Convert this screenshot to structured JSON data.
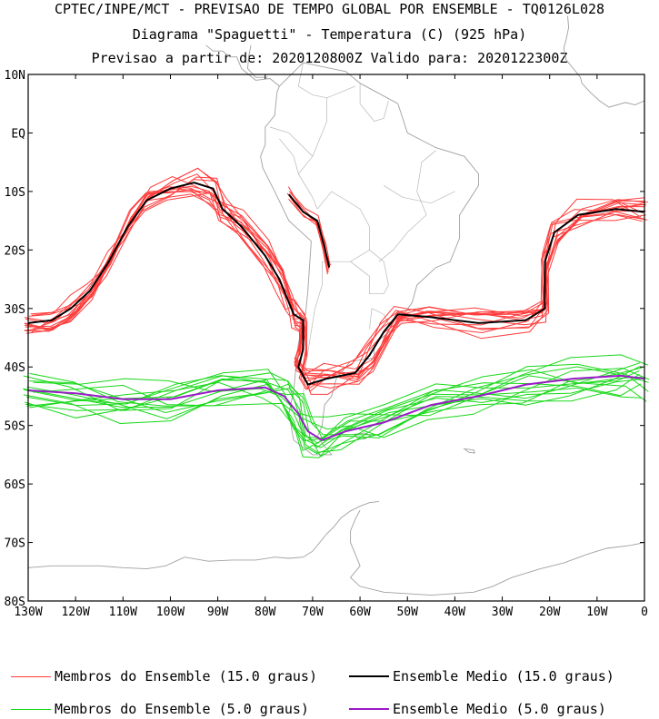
{
  "header": {
    "line1": "CPTEC/INPE/MCT - PREVISAO DE TEMPO GLOBAL POR ENSEMBLE - TQ0126L028",
    "line2": "Diagrama \"Spaguetti\" - Temperatura (C) (925 hPa)",
    "line3": "Previsao a partir de: 2020120800Z  Valido para: 2020122300Z"
  },
  "map": {
    "lon_range": [
      -130,
      0
    ],
    "lat_range": [
      -80,
      10
    ],
    "lat_ticks": [
      {
        "value": 10,
        "label": "10N"
      },
      {
        "value": 0,
        "label": "EQ"
      },
      {
        "value": -10,
        "label": "10S"
      },
      {
        "value": -20,
        "label": "20S"
      },
      {
        "value": -30,
        "label": "30S"
      },
      {
        "value": -40,
        "label": "40S"
      },
      {
        "value": -50,
        "label": "50S"
      },
      {
        "value": -60,
        "label": "60S"
      },
      {
        "value": -70,
        "label": "70S"
      },
      {
        "value": -80,
        "label": "80S"
      }
    ],
    "lon_ticks": [
      {
        "value": -130,
        "label": "130W"
      },
      {
        "value": -120,
        "label": "120W"
      },
      {
        "value": -110,
        "label": "110W"
      },
      {
        "value": -100,
        "label": "100W"
      },
      {
        "value": -90,
        "label": "90W"
      },
      {
        "value": -80,
        "label": "80W"
      },
      {
        "value": -70,
        "label": "70W"
      },
      {
        "value": -60,
        "label": "60W"
      },
      {
        "value": -50,
        "label": "50W"
      },
      {
        "value": -40,
        "label": "40W"
      },
      {
        "value": -30,
        "label": "30W"
      },
      {
        "value": -20,
        "label": "20W"
      },
      {
        "value": -10,
        "label": "10W"
      },
      {
        "value": 0,
        "label": "0"
      }
    ],
    "colors": {
      "members_15": "#ff3b3b",
      "mean_15": "#000000",
      "members_5": "#1ad81a",
      "mean_5": "#9a1ac8",
      "coast": "#a0a0a0"
    },
    "mean_15": [
      [
        -130,
        -32.5
      ],
      [
        -125,
        -32
      ],
      [
        -121,
        -30
      ],
      [
        -117,
        -27
      ],
      [
        -113,
        -22
      ],
      [
        -109,
        -16
      ],
      [
        -105,
        -11.5
      ],
      [
        -100,
        -9.5
      ],
      [
        -95,
        -8.5
      ],
      [
        -91,
        -9.5
      ],
      [
        -89,
        -13
      ],
      [
        -85,
        -16
      ],
      [
        -80,
        -21
      ],
      [
        -77,
        -25
      ],
      [
        -75,
        -29
      ],
      [
        -74,
        -31
      ],
      [
        -72,
        -32
      ],
      [
        -72,
        -37
      ],
      [
        -73,
        -40
      ],
      [
        -71,
        -43
      ],
      [
        -67,
        -42
      ],
      [
        -61,
        -41
      ],
      [
        -58,
        -38
      ],
      [
        -55,
        -34
      ],
      [
        -52,
        -31
      ],
      [
        -45,
        -31.5
      ],
      [
        -35,
        -32.5
      ],
      [
        -25,
        -32
      ],
      [
        -21,
        -30
      ],
      [
        -21,
        -22
      ],
      [
        -19,
        -17
      ],
      [
        -14,
        -14
      ],
      [
        -6,
        -13
      ],
      [
        0,
        -13.5
      ]
    ],
    "mean_15_b": [
      [
        -75,
        -10.5
      ],
      [
        -72,
        -13.5
      ],
      [
        -69,
        -15
      ],
      [
        -67.5,
        -19.5
      ],
      [
        -66.5,
        -23
      ]
    ],
    "mean_5": [
      [
        -130,
        -44
      ],
      [
        -120,
        -44.5
      ],
      [
        -110,
        -45.5
      ],
      [
        -100,
        -45.5
      ],
      [
        -90,
        -44
      ],
      [
        -80,
        -43.5
      ],
      [
        -76,
        -45
      ],
      [
        -73,
        -48
      ],
      [
        -71,
        -51
      ],
      [
        -68,
        -52.5
      ],
      [
        -63,
        -51
      ],
      [
        -55,
        -49.5
      ],
      [
        -45,
        -46.5
      ],
      [
        -35,
        -45
      ],
      [
        -25,
        -43
      ],
      [
        -15,
        -42
      ],
      [
        -5,
        -41.5
      ],
      [
        0,
        -42
      ]
    ]
  },
  "legend": {
    "members_15_label": "Membros do Ensemble (15.0 graus)",
    "mean_15_label": "Ensemble Medio (15.0 graus)",
    "members_5_label": "Membros do Ensemble (5.0 graus)",
    "mean_5_label": "Ensemble Medio (5.0 graus)"
  }
}
